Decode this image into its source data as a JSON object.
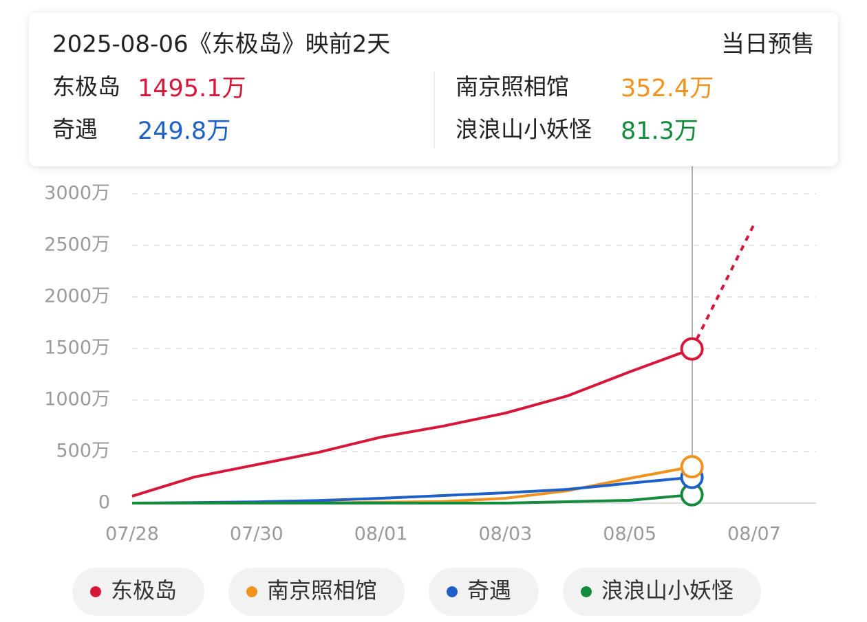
{
  "chart_data": {
    "type": "line",
    "tooltip_title": "2025-08-06《东极岛》映前2天",
    "tooltip_subtitle": "当日预售",
    "categories": [
      "07/28",
      null,
      "07/30",
      null,
      "08/01",
      null,
      "08/03",
      null,
      "08/05",
      null,
      "08/07"
    ],
    "ylim": [
      0,
      3000
    ],
    "yticks": [
      0,
      {
        "value": 500,
        "label": "500万"
      },
      {
        "value": 1000,
        "label": "1000万"
      },
      {
        "value": 1500,
        "label": "1500万"
      },
      {
        "value": 2000,
        "label": "2000万"
      },
      {
        "value": 2500,
        "label": "2500万"
      },
      {
        "value": 3000,
        "label": "3000万"
      }
    ],
    "grid": true,
    "series": [
      {
        "name": "东极岛",
        "color": "#d7173a",
        "values": [
          67,
          253,
          373,
          493,
          640,
          747,
          873,
          1040,
          1273,
          1495.1,
          null
        ],
        "forecast_values": [
          null,
          null,
          null,
          null,
          null,
          null,
          null,
          null,
          null,
          1495.1,
          2707
        ],
        "value_labels": [
          null,
          null,
          null,
          null,
          null,
          null,
          null,
          null,
          null,
          "1495.1万",
          null
        ]
      },
      {
        "name": "南京照相馆",
        "color": "#f0921e",
        "values": [
          0,
          0,
          1,
          3,
          8,
          15,
          47,
          120,
          240,
          352.4,
          null
        ],
        "value_labels": [
          null,
          null,
          null,
          null,
          null,
          null,
          null,
          null,
          null,
          "352.4万",
          null
        ]
      },
      {
        "name": "奇遇",
        "color": "#1e5fc8",
        "values": [
          0,
          5,
          12,
          25,
          47,
          73,
          100,
          133,
          193,
          249.8,
          null
        ],
        "value_labels": [
          null,
          null,
          null,
          null,
          null,
          null,
          null,
          null,
          null,
          "249.8万",
          null
        ]
      },
      {
        "name": "浪浪山小妖怪",
        "color": "#148a3c",
        "values": [
          0,
          0,
          0,
          0,
          0,
          0,
          0,
          13,
          27,
          81.3,
          null
        ],
        "value_labels": [
          null,
          null,
          null,
          null,
          null,
          null,
          null,
          null,
          null,
          "81.3万",
          null
        ]
      }
    ]
  }
}
